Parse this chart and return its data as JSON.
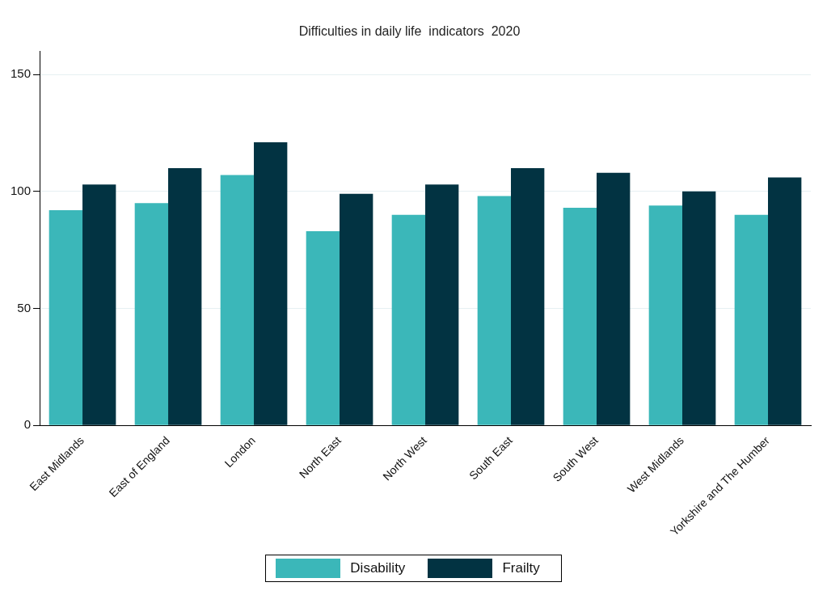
{
  "chart_data": {
    "type": "bar",
    "title": "Difficulties in daily life  indicators  2020",
    "categories": [
      "East Midlands",
      "East of England",
      "London",
      "North East",
      "North West",
      "South East",
      "South West",
      "West Midlands",
      "Yorkshire and The Humber"
    ],
    "series": [
      {
        "name": "Disability",
        "color": "#3bb7b9",
        "values": [
          92,
          95,
          107,
          83,
          90,
          98,
          93,
          94,
          90
        ]
      },
      {
        "name": "Frailty",
        "color": "#023342",
        "values": [
          103,
          110,
          121,
          99,
          103,
          110,
          108,
          100,
          106
        ]
      }
    ],
    "ylim": [
      0,
      160
    ],
    "yticks": [
      0,
      50,
      100,
      150
    ],
    "grid": "y",
    "legend": "bottom"
  }
}
